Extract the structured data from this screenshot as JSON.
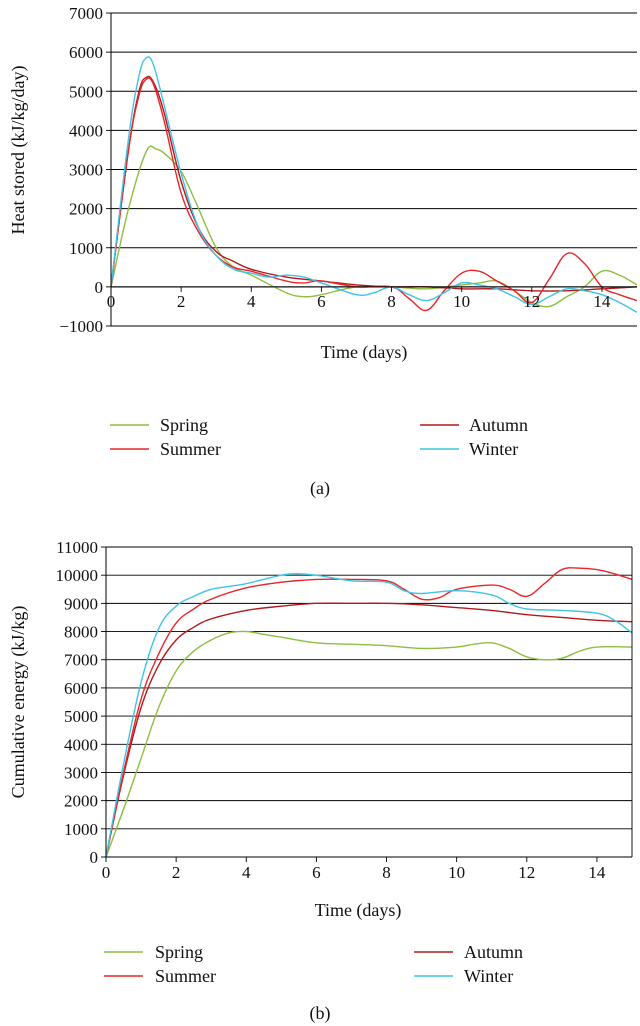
{
  "colors": {
    "Spring": "#8cbf3f",
    "Summer": "#e8262a",
    "Autumn": "#b3191c",
    "Winter": "#3ec4e6"
  },
  "chart_data": [
    {
      "type": "line",
      "panel_label": "(a)",
      "xlabel": "Time (days)",
      "ylabel": "Heat stored (kJ/kg/day)",
      "xlim": [
        0,
        15
      ],
      "ylim": [
        -1000,
        7000
      ],
      "xticks": [
        0,
        2,
        4,
        6,
        8,
        10,
        12,
        14
      ],
      "yticks": [
        -1000,
        0,
        1000,
        2000,
        3000,
        4000,
        5000,
        6000,
        7000
      ],
      "ytick_labels": [
        "−1000",
        "0",
        "1000",
        "2000",
        "3000",
        "4000",
        "5000",
        "6000",
        "7000"
      ],
      "grid": "horizontal",
      "legend": "below",
      "series": [
        {
          "name": "Spring",
          "color": "Spring",
          "x": [
            0,
            0.5,
            1,
            1.3,
            1.6,
            2,
            2.4,
            3,
            3.5,
            4,
            5,
            5.5,
            6,
            7,
            8,
            9,
            10,
            10.5,
            11,
            11.5,
            12,
            12.5,
            13,
            13.5,
            14,
            14.5,
            15
          ],
          "y": [
            0,
            2000,
            3450,
            3520,
            3350,
            2950,
            2200,
            1000,
            500,
            300,
            -150,
            -250,
            -200,
            0,
            0,
            -50,
            50,
            100,
            150,
            -100,
            -400,
            -500,
            -250,
            0,
            400,
            300,
            50
          ]
        },
        {
          "name": "Summer",
          "color": "Summer",
          "x": [
            0,
            0.5,
            0.8,
            1,
            1.2,
            1.5,
            2,
            2.5,
            3,
            3.5,
            4,
            5,
            5.5,
            6,
            7,
            8,
            8.5,
            9,
            9.5,
            10,
            10.5,
            11,
            11.5,
            12,
            12.5,
            13,
            13.5,
            14,
            14.5,
            15
          ],
          "y": [
            0,
            3500,
            4900,
            5300,
            5200,
            4300,
            2400,
            1400,
            800,
            500,
            400,
            150,
            100,
            150,
            0,
            0,
            -300,
            -600,
            -100,
            350,
            400,
            150,
            -100,
            -400,
            200,
            850,
            600,
            0,
            -200,
            -350
          ]
        },
        {
          "name": "Autumn",
          "color": "Autumn",
          "x": [
            0,
            0.5,
            0.8,
            1,
            1.2,
            1.5,
            2,
            2.5,
            3,
            3.5,
            4,
            5,
            6,
            7,
            8,
            9,
            10,
            11,
            12,
            13,
            14,
            15
          ],
          "y": [
            0,
            3500,
            5000,
            5350,
            5250,
            4500,
            2700,
            1500,
            900,
            650,
            450,
            250,
            150,
            50,
            0,
            0,
            -50,
            -50,
            -100,
            -100,
            -50,
            0
          ]
        },
        {
          "name": "Winter",
          "color": "Winter",
          "x": [
            0,
            0.5,
            0.8,
            1,
            1.2,
            1.5,
            2,
            2.5,
            3,
            3.5,
            4,
            4.5,
            5,
            5.5,
            6,
            7,
            7.5,
            8,
            8.5,
            9,
            9.5,
            10,
            10.5,
            11,
            11.5,
            12,
            12.5,
            13,
            13.5,
            14,
            14.5,
            15
          ],
          "y": [
            0,
            3800,
            5400,
            5850,
            5700,
            4700,
            2900,
            1500,
            800,
            450,
            350,
            250,
            300,
            250,
            100,
            -200,
            -150,
            0,
            -200,
            -350,
            -150,
            100,
            50,
            -50,
            -250,
            -450,
            -250,
            -50,
            -100,
            -200,
            -400,
            -650
          ]
        }
      ]
    },
    {
      "type": "line",
      "panel_label": "(b)",
      "xlabel": "Time (days)",
      "ylabel": "Cumulative energy (kJ/kg)",
      "xlim": [
        0,
        15
      ],
      "ylim": [
        0,
        11000
      ],
      "xticks": [
        0,
        2,
        4,
        6,
        8,
        10,
        12,
        14
      ],
      "yticks": [
        0,
        1000,
        2000,
        3000,
        4000,
        5000,
        6000,
        7000,
        8000,
        9000,
        10000,
        11000
      ],
      "ytick_labels": [
        "0",
        "1000",
        "2000",
        "3000",
        "4000",
        "5000",
        "6000",
        "7000",
        "8000",
        "9000",
        "10000",
        "11000"
      ],
      "grid": "horizontal",
      "legend": "below",
      "series": [
        {
          "name": "Spring",
          "color": "Spring",
          "x": [
            0,
            0.5,
            1,
            1.5,
            2,
            2.5,
            3,
            3.5,
            4,
            4.5,
            5,
            6,
            7,
            8,
            9,
            10,
            10.5,
            11,
            11.5,
            12,
            12.5,
            13,
            13.5,
            14,
            15
          ],
          "y": [
            0,
            1700,
            3500,
            5300,
            6600,
            7300,
            7700,
            7950,
            8000,
            7900,
            7800,
            7600,
            7550,
            7500,
            7400,
            7450,
            7550,
            7600,
            7400,
            7100,
            7000,
            7050,
            7300,
            7450,
            7450
          ]
        },
        {
          "name": "Summer",
          "color": "Summer",
          "x": [
            0,
            0.5,
            1,
            1.5,
            2,
            2.5,
            3,
            4,
            5,
            6,
            7,
            8,
            8.5,
            9,
            9.5,
            10,
            11,
            11.5,
            12,
            12.5,
            13,
            13.5,
            14,
            14.5,
            15
          ],
          "y": [
            0,
            3000,
            5600,
            7200,
            8300,
            8800,
            9150,
            9550,
            9750,
            9850,
            9850,
            9800,
            9500,
            9150,
            9200,
            9500,
            9650,
            9500,
            9250,
            9700,
            10200,
            10250,
            10200,
            10050,
            9850
          ]
        },
        {
          "name": "Autumn",
          "color": "Autumn",
          "x": [
            0,
            0.5,
            1,
            1.5,
            2,
            2.5,
            3,
            4,
            5,
            6,
            7,
            8,
            9,
            10,
            11,
            12,
            13,
            14,
            15
          ],
          "y": [
            0,
            2900,
            5300,
            6800,
            7700,
            8150,
            8450,
            8750,
            8900,
            9000,
            9000,
            9000,
            8950,
            8850,
            8750,
            8600,
            8500,
            8400,
            8350
          ]
        },
        {
          "name": "Winter",
          "color": "Winter",
          "x": [
            0,
            0.5,
            1,
            1.5,
            2,
            2.5,
            3,
            3.5,
            4,
            5,
            5.5,
            6,
            7,
            8,
            8.5,
            9,
            10,
            11,
            11.5,
            12,
            13,
            14,
            14.5,
            15
          ],
          "y": [
            0,
            3300,
            6200,
            8100,
            8900,
            9250,
            9500,
            9600,
            9700,
            10000,
            10050,
            10000,
            9800,
            9750,
            9450,
            9350,
            9450,
            9300,
            9000,
            8800,
            8750,
            8650,
            8400,
            7950
          ]
        }
      ]
    }
  ],
  "legends": [
    {
      "left": [
        "Spring",
        "Summer"
      ],
      "right": [
        "Autumn",
        "Winter"
      ]
    },
    {
      "left": [
        "Spring",
        "Summer"
      ],
      "right": [
        "Autumn",
        "Winter"
      ]
    }
  ]
}
